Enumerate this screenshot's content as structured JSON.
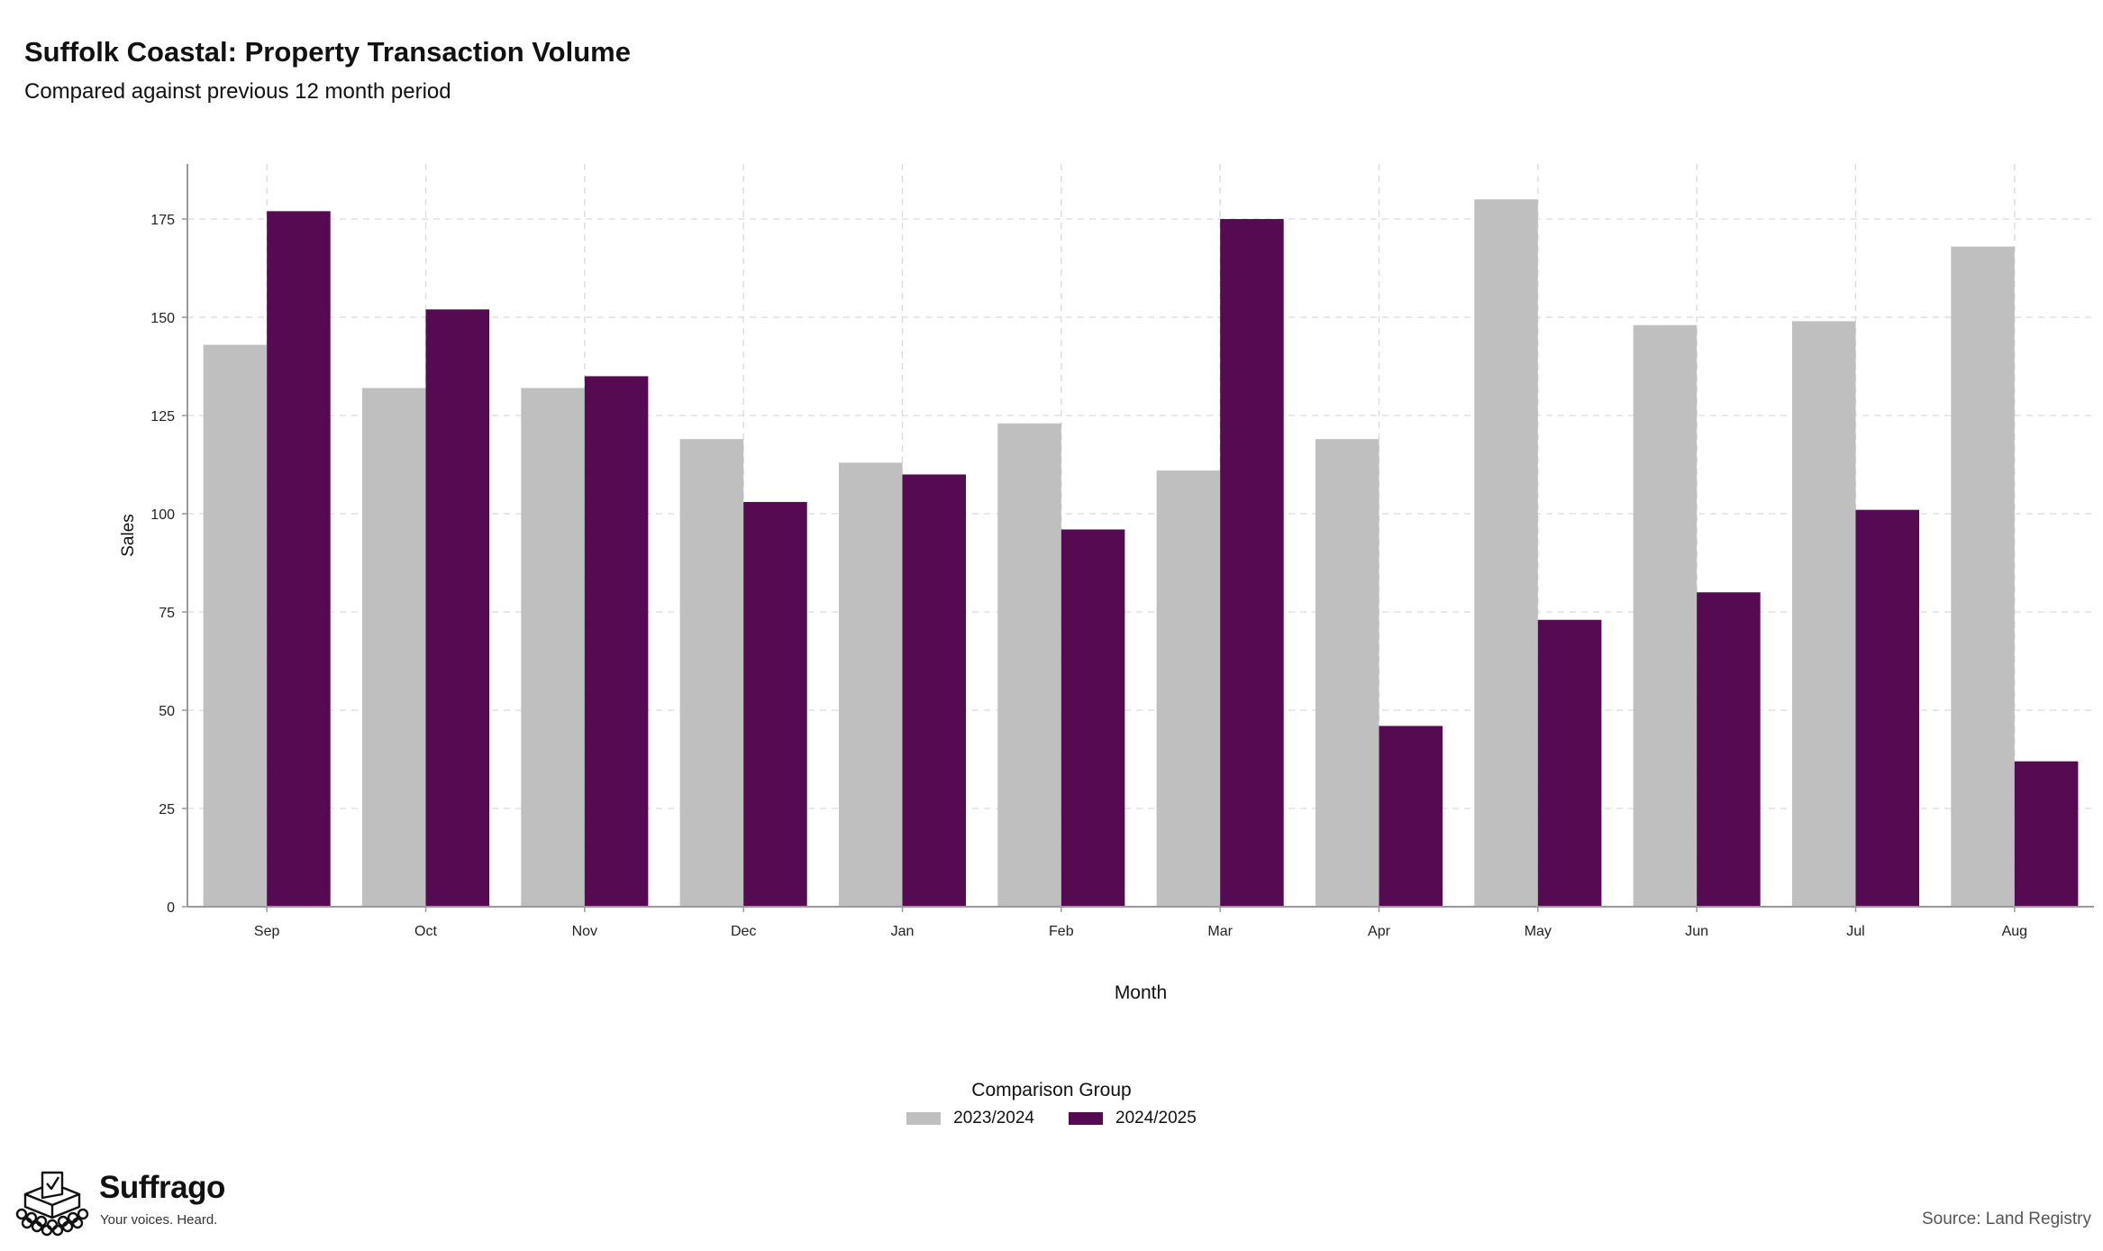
{
  "header": {
    "title": "Suffolk Coastal: Property Transaction Volume",
    "subtitle": "Compared against previous 12 month period"
  },
  "chart_data": {
    "type": "bar",
    "title": "Suffolk Coastal: Property Transaction Volume",
    "subtitle": "Compared against previous 12 month period",
    "xlabel": "Month",
    "ylabel": "Sales",
    "categories": [
      "Sep",
      "Oct",
      "Nov",
      "Dec",
      "Jan",
      "Feb",
      "Mar",
      "Apr",
      "May",
      "Jun",
      "Jul",
      "Aug"
    ],
    "series": [
      {
        "name": "2023/2024",
        "color": "#bfbfbf",
        "values": [
          143,
          132,
          132,
          119,
          113,
          123,
          111,
          119,
          180,
          148,
          149,
          168
        ]
      },
      {
        "name": "2024/2025",
        "color": "#560a52",
        "values": [
          177,
          152,
          135,
          103,
          110,
          96,
          175,
          46,
          73,
          80,
          101,
          37
        ]
      }
    ],
    "ylim": [
      0,
      189
    ],
    "yticks": [
      0,
      25,
      50,
      75,
      100,
      125,
      150,
      175
    ],
    "grid": true,
    "legend": {
      "title": "Comparison Group",
      "position": "bottom"
    }
  },
  "footer": {
    "brand": "Suffrago",
    "tagline": "Your voices. Heard.",
    "source": "Source: Land Registry",
    "logo_icon": "ballot-box-icon"
  }
}
